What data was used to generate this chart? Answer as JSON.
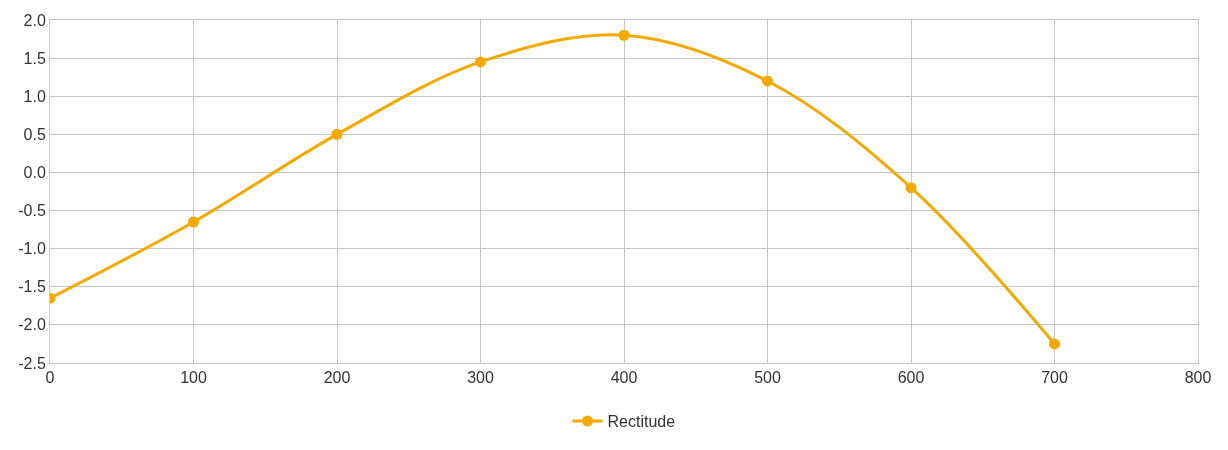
{
  "chart_data": {
    "type": "line",
    "x": [
      0,
      100,
      200,
      300,
      400,
      500,
      600,
      700
    ],
    "series": [
      {
        "name": "Rectitude",
        "color": "#f2a900",
        "values": [
          -1.65,
          -0.65,
          0.5,
          1.45,
          1.8,
          1.2,
          -0.2,
          -2.25
        ]
      }
    ],
    "xlim": [
      0,
      800
    ],
    "xticks": [
      0,
      100,
      200,
      300,
      400,
      500,
      600,
      700,
      800
    ],
    "ylim": [
      -2.5,
      2.0
    ],
    "yticks": [
      {
        "value": -2.5,
        "label": "-2.5"
      },
      {
        "value": -2.0,
        "label": "-2.0"
      },
      {
        "value": -1.5,
        "label": "-1.5"
      },
      {
        "value": -1.0,
        "label": "-1.0"
      },
      {
        "value": -0.5,
        "label": "-0.5"
      },
      {
        "value": 0,
        "label": "0.0"
      },
      {
        "value": 0.5,
        "label": "0.5"
      },
      {
        "value": 1.0,
        "label": "1.0"
      },
      {
        "value": 1.5,
        "label": "1.5"
      },
      {
        "value": 2.0,
        "label": "2.0"
      }
    ],
    "grid": true,
    "legend": "bottom",
    "marker": "circle",
    "line_style": "solid"
  }
}
